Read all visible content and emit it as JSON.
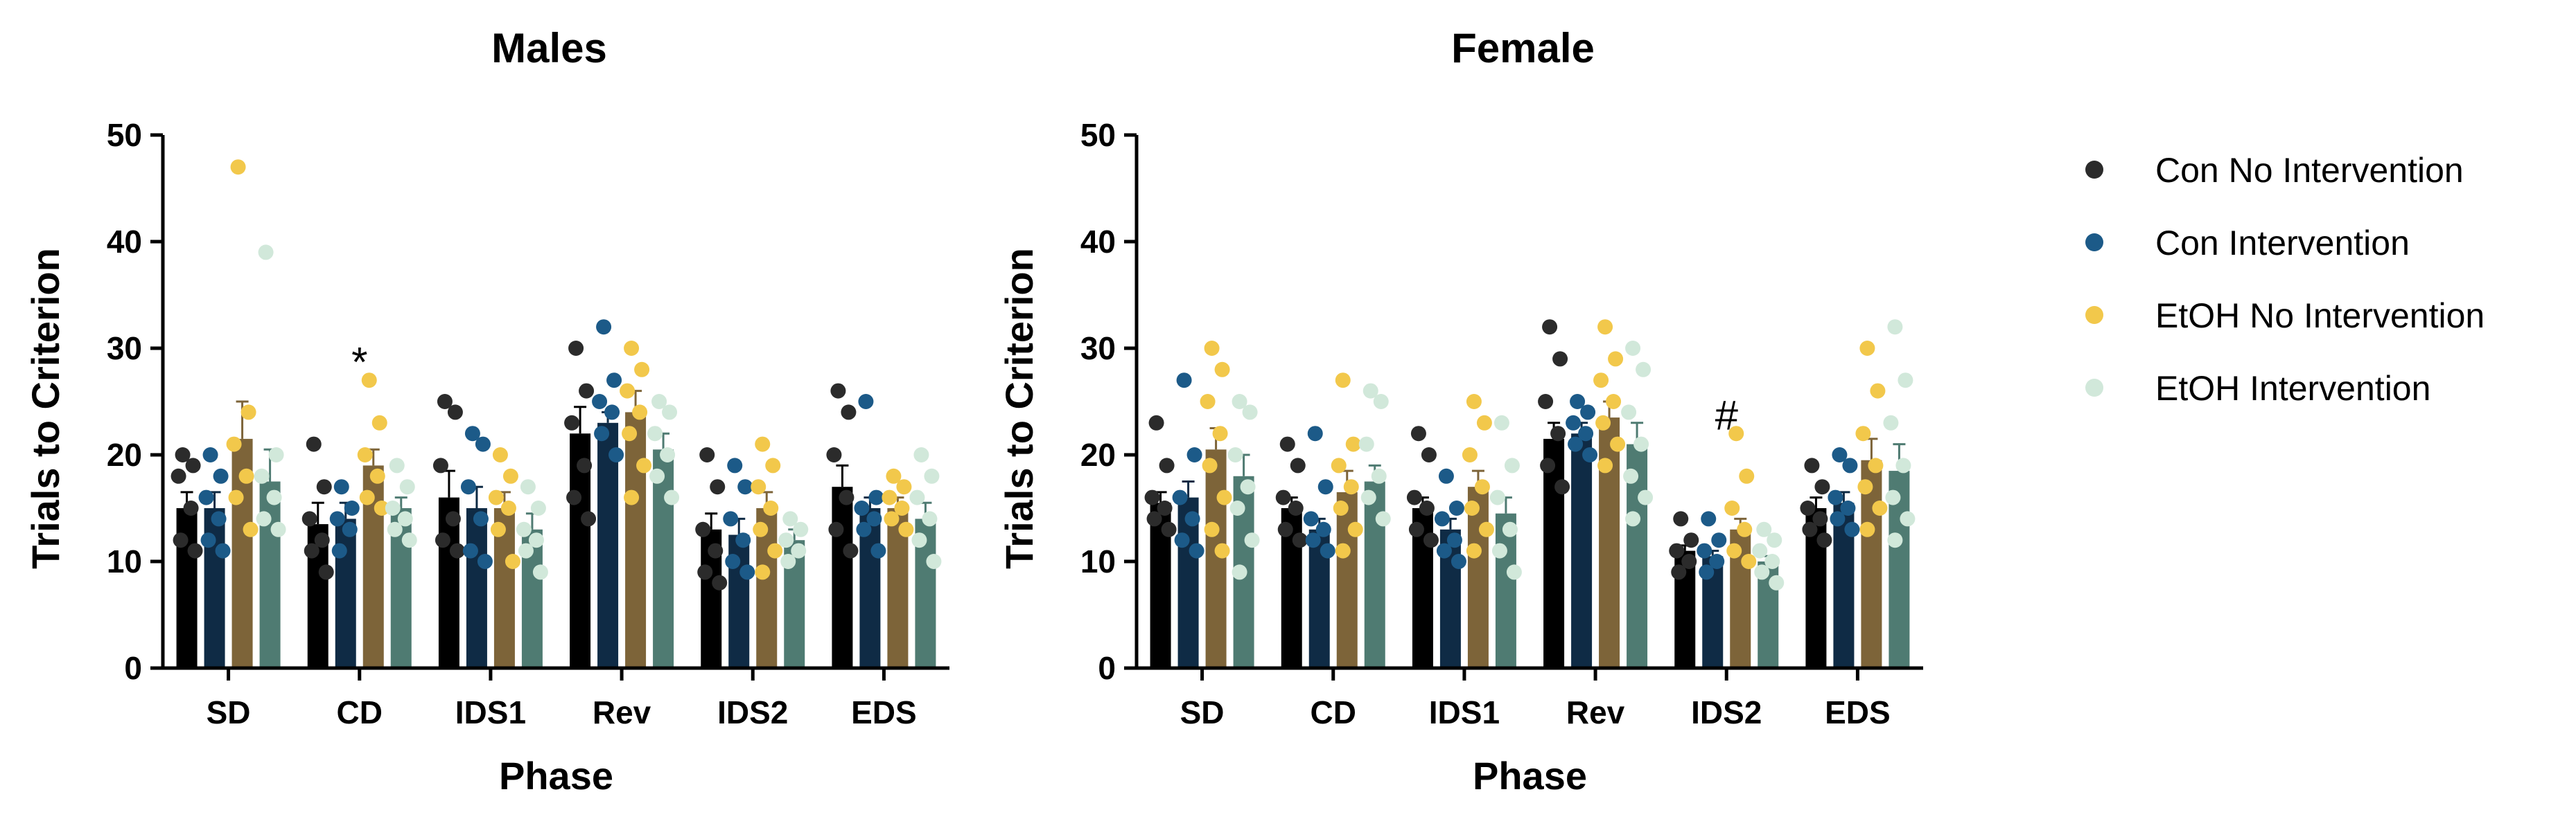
{
  "chart_data": [
    {
      "type": "bar",
      "title": "Males",
      "xlabel": "Phase",
      "ylabel": "Trials to Criterion",
      "ylim": [
        0,
        50
      ],
      "yticks": [
        "0",
        "10",
        "20",
        "30",
        "40",
        "50"
      ],
      "categories": [
        "SD",
        "CD",
        "IDS1",
        "Rev",
        "IDS2",
        "EDS"
      ],
      "series": [
        {
          "name": "Con No Intervention",
          "means": [
            15,
            13.5,
            16,
            22,
            13,
            17
          ],
          "sems": [
            1.5,
            2,
            2.5,
            2.5,
            1.5,
            2
          ],
          "points": [
            [
              20,
              19,
              18,
              15,
              12,
              11
            ],
            [
              21,
              17,
              14,
              12,
              11,
              9
            ],
            [
              25,
              24,
              19,
              14,
              12,
              11
            ],
            [
              30,
              26,
              23,
              19,
              16,
              14
            ],
            [
              20,
              17,
              13,
              11,
              9,
              8
            ],
            [
              26,
              24,
              20,
              16,
              13,
              11
            ]
          ]
        },
        {
          "name": "Con Intervention",
          "means": [
            15,
            14,
            15,
            23,
            12.5,
            15
          ],
          "sems": [
            1.5,
            1.5,
            2,
            1,
            1.5,
            1
          ],
          "points": [
            [
              20,
              18,
              16,
              14,
              12,
              11
            ],
            [
              17,
              15,
              14,
              13,
              11
            ],
            [
              22,
              21,
              17,
              14,
              11,
              10
            ],
            [
              32,
              27,
              25,
              24,
              22,
              20
            ],
            [
              19,
              17,
              14,
              12,
              10,
              9
            ],
            [
              25,
              16,
              15,
              14,
              13,
              11
            ]
          ]
        },
        {
          "name": "EtOH No Intervention",
          "means": [
            21.5,
            19,
            15,
            24,
            15,
            15
          ],
          "sems": [
            3.5,
            1.5,
            1.5,
            2,
            1.5,
            1
          ],
          "points": [
            [
              47,
              24,
              21,
              18,
              16,
              13
            ],
            [
              27,
              23,
              20,
              18,
              16,
              15
            ],
            [
              20,
              18,
              16,
              15,
              13,
              10
            ],
            [
              30,
              28,
              26,
              24,
              22,
              19,
              16
            ],
            [
              21,
              19,
              17,
              15,
              13,
              11,
              9
            ],
            [
              18,
              17,
              16,
              15,
              14,
              13
            ]
          ]
        },
        {
          "name": "EtOH Intervention",
          "means": [
            17.5,
            15,
            13,
            20.5,
            12,
            14
          ],
          "sems": [
            3,
            1,
            1.5,
            1.5,
            1,
            1.5
          ],
          "points": [
            [
              39,
              20,
              18,
              16,
              14,
              13
            ],
            [
              19,
              17,
              15,
              14,
              13,
              12
            ],
            [
              17,
              15,
              13,
              12,
              11,
              9
            ],
            [
              25,
              24,
              22,
              20,
              18,
              16
            ],
            [
              14,
              13,
              12,
              11,
              10
            ],
            [
              20,
              18,
              16,
              14,
              12,
              10
            ]
          ]
        }
      ],
      "annotations": [
        {
          "text": "*",
          "category": "CD",
          "y": 29
        }
      ]
    },
    {
      "type": "bar",
      "title": "Female",
      "xlabel": "Phase",
      "ylabel": "Trials to Criterion",
      "ylim": [
        0,
        50
      ],
      "yticks": [
        "0",
        "10",
        "20",
        "30",
        "40",
        "50"
      ],
      "categories": [
        "SD",
        "CD",
        "IDS1",
        "Rev",
        "IDS2",
        "EDS"
      ],
      "series": [
        {
          "name": "Con No Intervention",
          "means": [
            15.5,
            15,
            15,
            21.5,
            11,
            15
          ],
          "sems": [
            1,
            1,
            1,
            1.5,
            0.5,
            1
          ],
          "points": [
            [
              23,
              19,
              16,
              15,
              14,
              13
            ],
            [
              21,
              19,
              16,
              15,
              13,
              12
            ],
            [
              22,
              20,
              16,
              15,
              13,
              12
            ],
            [
              32,
              29,
              25,
              22,
              19,
              17
            ],
            [
              14,
              12,
              11,
              10,
              9
            ],
            [
              19,
              17,
              15,
              14,
              13,
              12
            ]
          ]
        },
        {
          "name": "Con Intervention",
          "means": [
            16,
            13,
            13,
            22,
            10.5,
            15.5
          ],
          "sems": [
            1.5,
            1,
            1,
            1,
            0.5,
            1
          ],
          "points": [
            [
              27,
              20,
              16,
              14,
              12,
              11
            ],
            [
              22,
              17,
              14,
              13,
              12,
              11
            ],
            [
              18,
              15,
              14,
              12,
              11,
              10
            ],
            [
              25,
              24,
              23,
              22,
              21,
              20
            ],
            [
              14,
              12,
              11,
              10,
              9
            ],
            [
              20,
              19,
              16,
              15,
              14,
              13
            ]
          ]
        },
        {
          "name": "EtOH No Intervention",
          "means": [
            20.5,
            16.5,
            17,
            23.5,
            13,
            19.5
          ],
          "sems": [
            2,
            2,
            1.5,
            1.5,
            1,
            2
          ],
          "points": [
            [
              30,
              28,
              25,
              22,
              19,
              16,
              13,
              11
            ],
            [
              27,
              21,
              19,
              17,
              15,
              13,
              11
            ],
            [
              25,
              23,
              20,
              17,
              15,
              13,
              11
            ],
            [
              32,
              29,
              27,
              25,
              23,
              21,
              19
            ],
            [
              22,
              18,
              15,
              13,
              11,
              10
            ],
            [
              30,
              26,
              22,
              19,
              17,
              15,
              13
            ]
          ]
        },
        {
          "name": "EtOH Intervention",
          "means": [
            18,
            17.5,
            14.5,
            21,
            10,
            18.5
          ],
          "sems": [
            2,
            1.5,
            1.5,
            2,
            0.5,
            2.5
          ],
          "points": [
            [
              25,
              24,
              20,
              17,
              15,
              12,
              9
            ],
            [
              26,
              25,
              21,
              18,
              16,
              14
            ],
            [
              23,
              19,
              16,
              13,
              11,
              9
            ],
            [
              30,
              28,
              24,
              21,
              18,
              16,
              14
            ],
            [
              13,
              12,
              11,
              10,
              9,
              8
            ],
            [
              32,
              27,
              23,
              19,
              16,
              14,
              12
            ]
          ]
        }
      ],
      "annotations": [
        {
          "text": "#",
          "category": "IDS2",
          "y": 24
        }
      ]
    }
  ],
  "legend": {
    "placement": "right",
    "items": [
      {
        "label": "Con No Intervention",
        "dot_color": "#2b2b2b",
        "bar_color": "#000000"
      },
      {
        "label": "Con Intervention",
        "dot_color": "#1c5a88",
        "bar_color": "#0f2b45"
      },
      {
        "label": "EtOH No Intervention",
        "dot_color": "#f2c84b",
        "bar_color": "#7d6439"
      },
      {
        "label": "EtOH Intervention",
        "dot_color": "#d1e8da",
        "bar_color": "#4f7b72"
      }
    ]
  }
}
